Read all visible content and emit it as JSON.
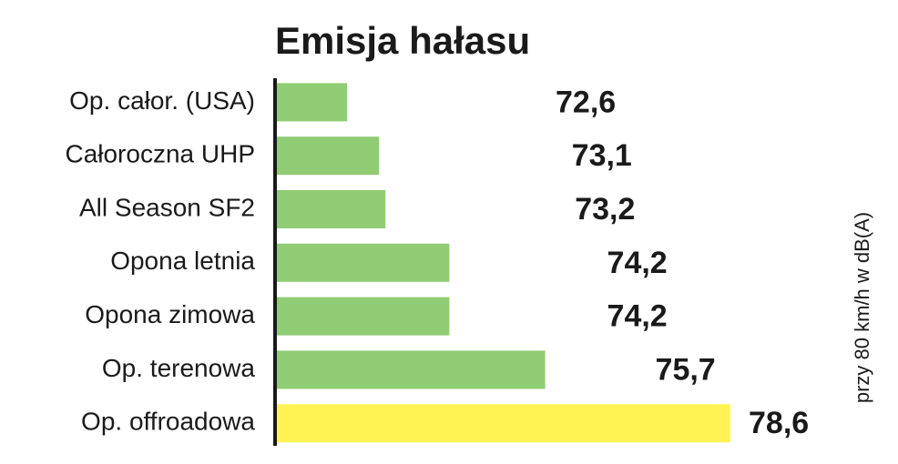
{
  "chart_data": {
    "type": "bar",
    "orientation": "horizontal",
    "title": "Emisja hałasu",
    "categories": [
      "Op. całor. (USA)",
      "Całoroczna UHP",
      "All Season SF2",
      "Opona letnia",
      "Opona zimowa",
      "Op. terenowa",
      "Op. offroadowa"
    ],
    "values": [
      72.6,
      73.1,
      73.2,
      74.2,
      74.2,
      75.7,
      78.6
    ],
    "value_labels": [
      "72,6",
      "73,1",
      "73,2",
      "74,2",
      "74,2",
      "75,7",
      "78,6"
    ],
    "colors": [
      "#90cc74",
      "#90cc74",
      "#90cc74",
      "#90cc74",
      "#90cc74",
      "#90cc74",
      "#fff353"
    ],
    "xlim": [
      71.5,
      79
    ],
    "note": "przy 80 km/h w dB(A)"
  }
}
